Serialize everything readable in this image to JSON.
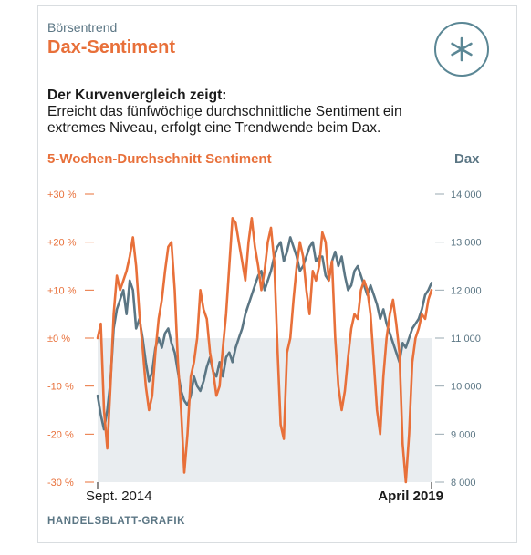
{
  "header": {
    "kicker": "Börsentrend",
    "title": "Dax-Sentiment",
    "logo_icon": "asterisk-icon"
  },
  "lead": {
    "bold": "Der Kurvenvergleich zeigt:",
    "line1": "Erreicht das fünfwöchige durchschnittliche Sentiment ein",
    "line2": "extremes Niveau, erfolgt eine Trendwende beim Dax."
  },
  "legend": {
    "left": "5-Wochen-Durchschnitt Sentiment",
    "right": "Dax"
  },
  "source": "HANDELSBLATT-GRAFIK",
  "colors": {
    "sentiment": "#e8703a",
    "dax": "#5b7684",
    "negative_area": "#e9edf0",
    "accent": "#e8703a"
  },
  "chart_data": {
    "type": "line",
    "x_start_label": "Sept. 2014",
    "x_end_label": "April 2019",
    "y_left": {
      "ylim": [
        -30,
        30
      ],
      "ticks": [
        -30,
        -20,
        -10,
        0,
        10,
        20,
        30
      ],
      "tick_labels": [
        "-30 %",
        "-20 %",
        "-10 %",
        "±0 %",
        "+10 %",
        "+20 %",
        "+30 %"
      ]
    },
    "y_right": {
      "ylim": [
        8000,
        14000
      ],
      "ticks": [
        8000,
        9000,
        10000,
        11000,
        12000,
        13000,
        14000
      ],
      "tick_labels": [
        "8 000",
        "9 000",
        "10 000",
        "11 000",
        "12 000",
        "13 000",
        "14 000"
      ]
    },
    "shaded_region": "below ±0 %",
    "series": [
      {
        "name": "5-Wochen-Durchschnitt Sentiment",
        "axis": "left",
        "values": [
          0,
          3,
          -15,
          -23,
          -10,
          5,
          13,
          10,
          12,
          14,
          17,
          21,
          15,
          5,
          -2,
          -10,
          -15,
          -12,
          -3,
          4,
          8,
          14,
          19,
          20,
          10,
          -5,
          -15,
          -28,
          -20,
          -8,
          -5,
          0,
          10,
          6,
          4,
          -3,
          -7,
          -12,
          -10,
          -2,
          5,
          15,
          25,
          24,
          20,
          16,
          12,
          20,
          25,
          19,
          15,
          10,
          14,
          20,
          23,
          16,
          -2,
          -18,
          -21,
          -3,
          0,
          8,
          15,
          20,
          17,
          10,
          5,
          14,
          12,
          15,
          22,
          20,
          12,
          16,
          0,
          -10,
          -15,
          -11,
          -4,
          2,
          5,
          4,
          10,
          12,
          10,
          5,
          -5,
          -15,
          -20,
          -8,
          0,
          5,
          8,
          3,
          -3,
          -22,
          -30,
          -20,
          -5,
          0,
          2,
          5,
          4,
          8,
          10
        ]
      },
      {
        "name": "Dax",
        "axis": "right",
        "values": [
          9800,
          9400,
          9100,
          9500,
          10100,
          11200,
          11600,
          11800,
          12000,
          11500,
          12200,
          12000,
          11200,
          11400,
          11000,
          10500,
          10100,
          10300,
          10800,
          11000,
          10800,
          11100,
          11200,
          10900,
          10700,
          10300,
          9900,
          9700,
          9600,
          9800,
          10200,
          10000,
          9900,
          10100,
          10400,
          10600,
          10300,
          10200,
          10500,
          10200,
          10600,
          10700,
          10500,
          10800,
          11000,
          11200,
          11500,
          11700,
          11900,
          12100,
          12300,
          12400,
          12000,
          12200,
          12400,
          12700,
          12900,
          13000,
          12600,
          12800,
          13100,
          12900,
          12700,
          12400,
          12500,
          12700,
          12900,
          13000,
          12600,
          12700,
          12700,
          12300,
          12200,
          12600,
          12800,
          12500,
          12700,
          12300,
          12000,
          12100,
          12400,
          12500,
          12300,
          12100,
          11900,
          12100,
          11900,
          11700,
          11400,
          11600,
          11300,
          11100,
          10900,
          10700,
          10500,
          10900,
          10800,
          11000,
          11200,
          11300,
          11400,
          11600,
          11900,
          12000,
          12150
        ]
      }
    ]
  }
}
